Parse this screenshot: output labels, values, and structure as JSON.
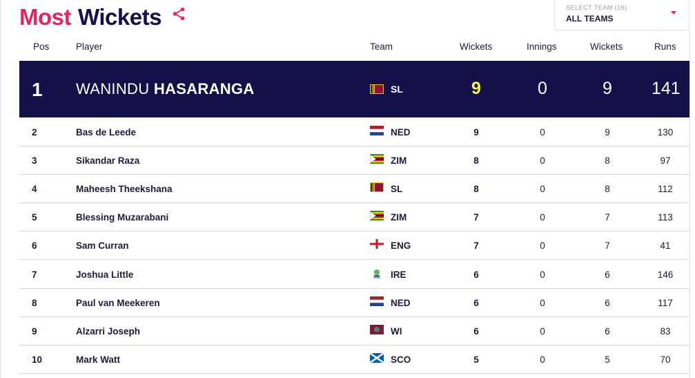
{
  "title": {
    "word1": "Most",
    "word2": "Wickets"
  },
  "team_select": {
    "label": "SELECT TEAM (16)",
    "value": "ALL TEAMS"
  },
  "headers": [
    "Pos",
    "Player",
    "Team",
    "Wickets",
    "Innings",
    "Wickets",
    "Runs"
  ],
  "top": {
    "pos": "1",
    "first": "WANINDU",
    "last": "HASARANGA",
    "team": "SL",
    "wickets": "9",
    "innings": "0",
    "wickets2": "9",
    "runs": "141"
  },
  "rows": [
    {
      "pos": "2",
      "name": "Bas de Leede",
      "team": "NED",
      "flag": "ned-flag-icon",
      "wickets": "9",
      "innings": "0",
      "wickets2": "9",
      "runs": "130"
    },
    {
      "pos": "3",
      "name": "Sikandar Raza",
      "team": "ZIM",
      "flag": "zim-flag-icon",
      "wickets": "8",
      "innings": "0",
      "wickets2": "8",
      "runs": "97"
    },
    {
      "pos": "4",
      "name": "Maheesh Theekshana",
      "team": "SL",
      "flag": "sl-flag-icon",
      "wickets": "8",
      "innings": "0",
      "wickets2": "8",
      "runs": "112"
    },
    {
      "pos": "5",
      "name": "Blessing Muzarabani",
      "team": "ZIM",
      "flag": "zim-flag-icon",
      "wickets": "7",
      "innings": "0",
      "wickets2": "7",
      "runs": "113"
    },
    {
      "pos": "6",
      "name": "Sam Curran",
      "team": "ENG",
      "flag": "eng-flag-icon",
      "wickets": "7",
      "innings": "0",
      "wickets2": "7",
      "runs": "41"
    },
    {
      "pos": "7",
      "name": "Joshua Little",
      "team": "IRE",
      "flag": "ire-logo-icon",
      "wickets": "6",
      "innings": "0",
      "wickets2": "6",
      "runs": "146"
    },
    {
      "pos": "8",
      "name": "Paul van Meekeren",
      "team": "NED",
      "flag": "ned-flag-icon",
      "wickets": "6",
      "innings": "0",
      "wickets2": "6",
      "runs": "117"
    },
    {
      "pos": "9",
      "name": "Alzarri Joseph",
      "team": "WI",
      "flag": "wi-flag-icon",
      "wickets": "6",
      "innings": "0",
      "wickets2": "6",
      "runs": "83"
    },
    {
      "pos": "10",
      "name": "Mark Watt",
      "team": "SCO",
      "flag": "sco-flag-icon",
      "wickets": "5",
      "innings": "0",
      "wickets2": "5",
      "runs": "70"
    }
  ],
  "colors": {
    "accent": "#e4245f",
    "navy": "#14104a",
    "highlight": "#fff34a"
  }
}
